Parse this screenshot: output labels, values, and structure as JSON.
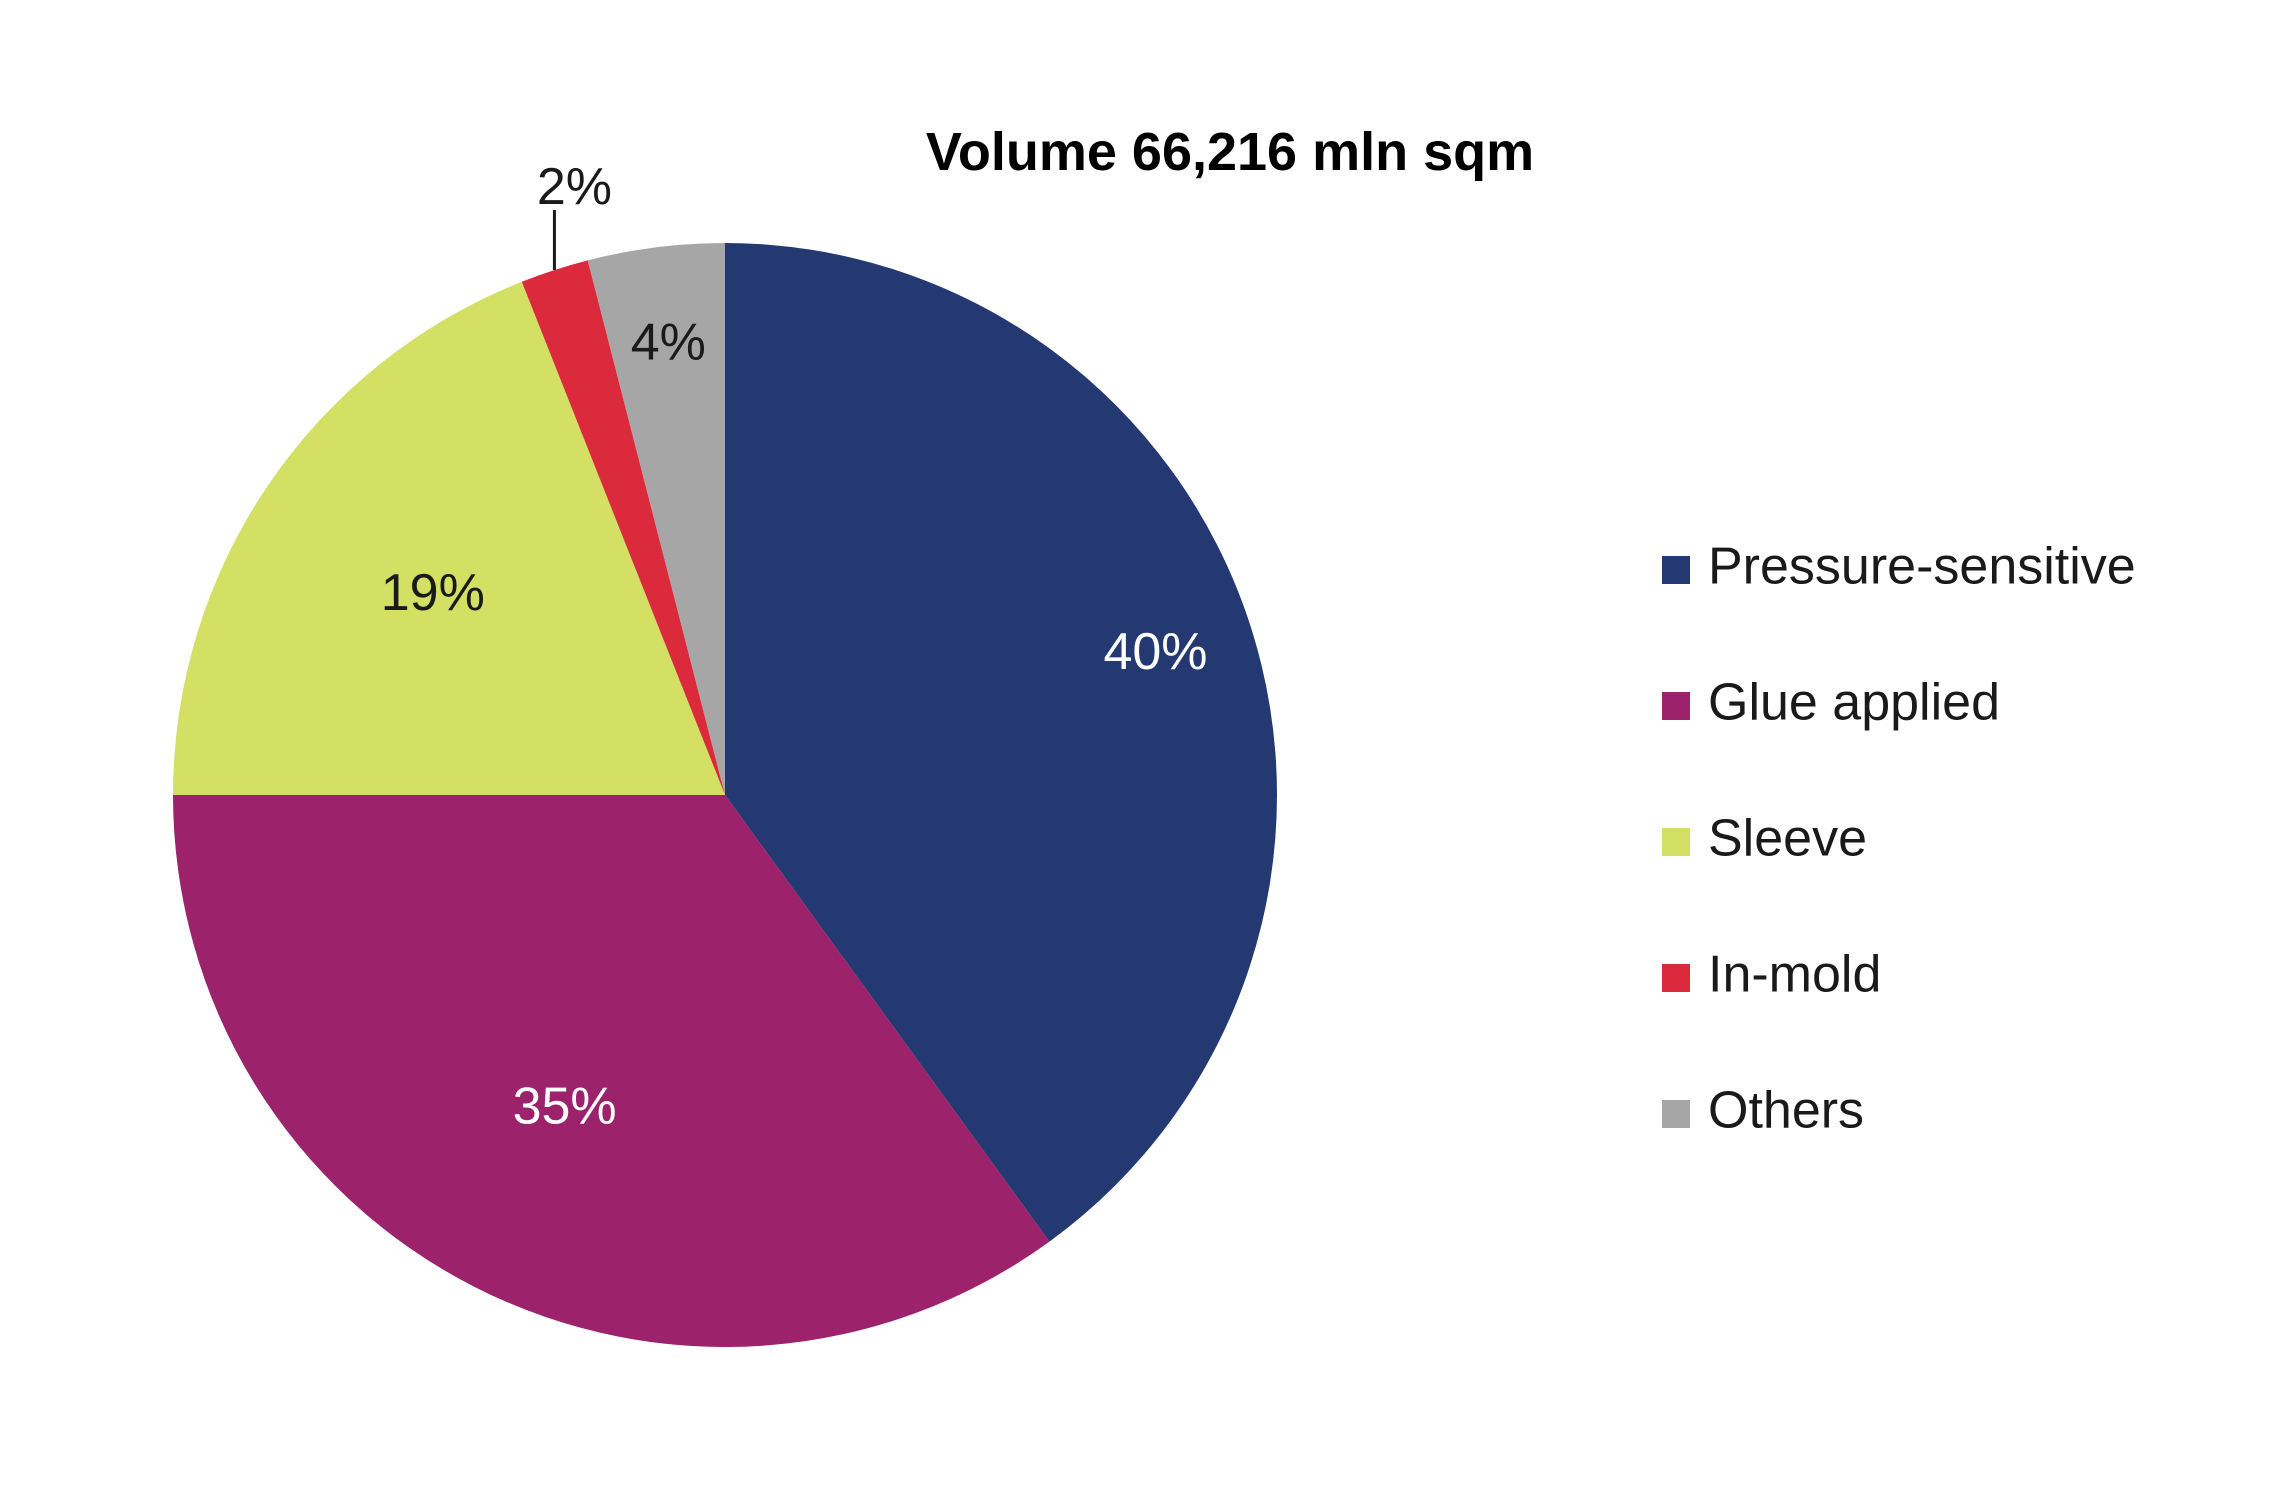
{
  "chart_data": {
    "type": "pie",
    "title": "Volume 66,216 mln sqm",
    "slices": [
      {
        "name": "Pressure-sensitive",
        "value": 40,
        "label": "40%",
        "color": "#243872",
        "label_color": "#ffffff"
      },
      {
        "name": "Glue applied",
        "value": 35,
        "label": "35%",
        "color": "#9b226b",
        "label_color": "#ffffff"
      },
      {
        "name": "Sleeve",
        "value": 19,
        "label": "19%",
        "color": "#d3e064",
        "label_color": "#1a1a1a"
      },
      {
        "name": "In-mold",
        "value": 2,
        "label": "2%",
        "color": "#dc2a3d",
        "label_color": "#1a1a1a"
      },
      {
        "name": "Others",
        "value": 4,
        "label": "4%",
        "color": "#a6a6a6",
        "label_color": "#1a1a1a"
      }
    ],
    "start_angle": "12 o'clock",
    "direction": "clockwise",
    "legend_position": "right"
  }
}
